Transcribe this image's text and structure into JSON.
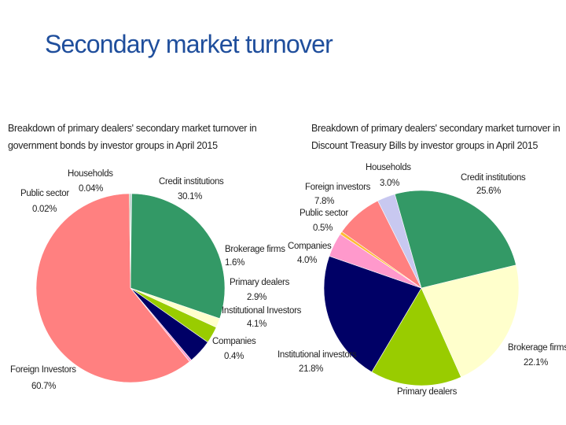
{
  "page": {
    "title": "Secondary market turnover"
  },
  "colors": {
    "title": "#1f4e9c",
    "Households": "#c8c8f0",
    "Public sector": "#8fbf8f",
    "Credit institutions": "#339966",
    "Brokerage firms": "#ffffcc",
    "Primary dealers": "#99cc00",
    "Institutional investors": "#000066",
    "Companies": "#ff99cc",
    "Foreign investors": "#ff8080",
    "Public sector (T-Bills)": "#ffbb33"
  },
  "chart_data": [
    {
      "type": "pie",
      "title": "Breakdown of primary dealers' secondary market turnover in government bonds by investor groups in April 2015",
      "slices": [
        {
          "label": "Households",
          "value": 0.04,
          "display": "0.04%",
          "color": "#c8c8f0"
        },
        {
          "label": "Credit institutions",
          "value": 30.1,
          "display": "30.1%",
          "color": "#339966"
        },
        {
          "label": "Brokerage firms",
          "value": 1.6,
          "display": "1.6%",
          "color": "#ffffcc"
        },
        {
          "label": "Primary  dealers",
          "value": 2.9,
          "display": "2.9%",
          "color": "#99cc00"
        },
        {
          "label": "Institutional Investors",
          "value": 4.1,
          "display": "4.1%",
          "color": "#000066"
        },
        {
          "label": "Companies",
          "value": 0.4,
          "display": "0.4%",
          "color": "#ff99cc"
        },
        {
          "label": "Foreign Investors",
          "value": 60.7,
          "display": "60.7%",
          "color": "#ff8080"
        },
        {
          "label": "Public sector",
          "value": 0.02,
          "display": "0.02%",
          "color": "#8fbf8f"
        }
      ]
    },
    {
      "type": "pie",
      "title": "Breakdown of primary dealers' secondary market turnover in Discount Treasury Bills by investor groups in April 2015",
      "slices": [
        {
          "label": "Households",
          "value": 3.0,
          "display": "3.0%",
          "color": "#c8c8f0"
        },
        {
          "label": "Credit institutions",
          "value": 25.6,
          "display": "25.6%",
          "color": "#339966"
        },
        {
          "label": "Brokerage firms",
          "value": 22.1,
          "display": "22.1%",
          "color": "#ffffcc"
        },
        {
          "label": "Primary  dealers",
          "value": 15.2,
          "display": "",
          "color": "#99cc00"
        },
        {
          "label": "Institutional investors",
          "value": 21.8,
          "display": "21.8%",
          "color": "#000066"
        },
        {
          "label": "Companies",
          "value": 4.0,
          "display": "4.0%",
          "color": "#ff99cc"
        },
        {
          "label": "Public sector",
          "value": 0.5,
          "display": "0.5%",
          "color": "#ffbb33"
        },
        {
          "label": "Foreign investors",
          "value": 7.8,
          "display": "7.8%",
          "color": "#ff8080"
        }
      ]
    }
  ]
}
